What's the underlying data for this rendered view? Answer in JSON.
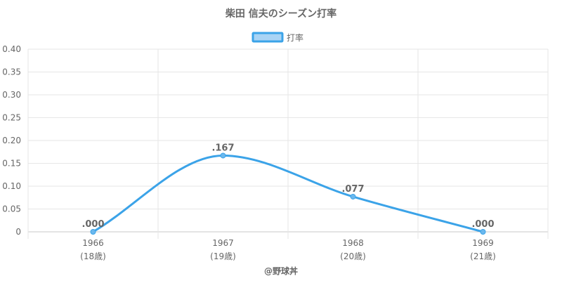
{
  "colors": {
    "line": "#3ba3e8",
    "point": "#6bb8ee",
    "legend_fill": "#a9d4f5",
    "grid": "#e6e6e6",
    "axis": "#c8c8c8",
    "text": "#666666"
  },
  "chart_data": {
    "type": "line",
    "title": "柴田 信夫のシーズン打率",
    "legend_position": "top",
    "grid": true,
    "x": [
      "1966",
      "1967",
      "1968",
      "1969"
    ],
    "x_sublabels": [
      "(18歳)",
      "(19歳)",
      "(20歳)",
      "(21歳)"
    ],
    "y_ticks": [
      "0",
      "0.05",
      "0.10",
      "0.15",
      "0.20",
      "0.25",
      "0.30",
      "0.35",
      "0.40"
    ],
    "ylim": [
      0,
      0.4
    ],
    "series": [
      {
        "name": "打率",
        "values": [
          0.0,
          0.167,
          0.077,
          0.0
        ],
        "labels": [
          ".000",
          ".167",
          ".077",
          ".000"
        ]
      }
    ]
  },
  "footer": {
    "watermark": "@野球丼"
  }
}
